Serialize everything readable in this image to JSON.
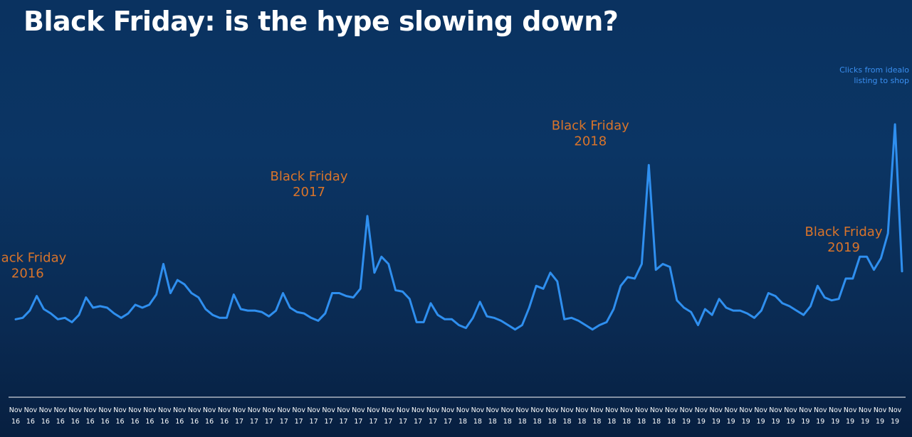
{
  "title": "Black Friday: is the hype slowing down?",
  "colors": {
    "line": "#2f8fef",
    "annotation": "#d9742a",
    "series_label": "#3a8ff0",
    "axis": "#ffffff"
  },
  "chart_data": {
    "type": "line",
    "title": "Black Friday: is the hype slowing down?",
    "series_label_lines": [
      "Clicks from idealo",
      "listing to shop"
    ],
    "x_tick_lines": [
      [
        "Nov",
        "16"
      ],
      [
        "Nov",
        "16"
      ],
      [
        "Nov",
        "16"
      ],
      [
        "Nov",
        "16"
      ],
      [
        "Nov",
        "16"
      ],
      [
        "Nov",
        "16"
      ],
      [
        "Nov",
        "16"
      ],
      [
        "Nov",
        "16"
      ],
      [
        "Nov",
        "16"
      ],
      [
        "Nov",
        "16"
      ],
      [
        "Nov",
        "16"
      ],
      [
        "Nov",
        "16"
      ],
      [
        "Nov",
        "16"
      ],
      [
        "Nov",
        "16"
      ],
      [
        "Nov",
        "16"
      ],
      [
        "Nov",
        "17"
      ],
      [
        "Nov",
        "17"
      ],
      [
        "Nov",
        "17"
      ],
      [
        "Nov",
        "17"
      ],
      [
        "Nov",
        "17"
      ],
      [
        "Nov",
        "17"
      ],
      [
        "Nov",
        "17"
      ],
      [
        "Nov",
        "17"
      ],
      [
        "Nov",
        "17"
      ],
      [
        "Nov",
        "17"
      ],
      [
        "Nov",
        "17"
      ],
      [
        "Nov",
        "17"
      ],
      [
        "Nov",
        "17"
      ],
      [
        "Nov",
        "17"
      ],
      [
        "Nov",
        "17"
      ],
      [
        "Nov",
        "18"
      ],
      [
        "Nov",
        "18"
      ],
      [
        "Nov",
        "18"
      ],
      [
        "Nov",
        "18"
      ],
      [
        "Nov",
        "18"
      ],
      [
        "Nov",
        "18"
      ],
      [
        "Nov",
        "18"
      ],
      [
        "Nov",
        "18"
      ],
      [
        "Nov",
        "18"
      ],
      [
        "Nov",
        "18"
      ],
      [
        "Nov",
        "18"
      ],
      [
        "Nov",
        "18"
      ],
      [
        "Nov",
        "18"
      ],
      [
        "Nov",
        "18"
      ],
      [
        "Nov",
        "18"
      ],
      [
        "Nov",
        "19"
      ],
      [
        "Nov",
        "19"
      ],
      [
        "Nov",
        "19"
      ],
      [
        "Nov",
        "19"
      ],
      [
        "Nov",
        "19"
      ],
      [
        "Nov",
        "19"
      ],
      [
        "Nov",
        "19"
      ],
      [
        "Nov",
        "19"
      ],
      [
        "Nov",
        "19"
      ],
      [
        "Nov",
        "19"
      ],
      [
        "Nov",
        "19"
      ],
      [
        "Nov",
        "19"
      ],
      [
        "Nov",
        "19"
      ],
      [
        "Nov",
        "19"
      ],
      [
        "Nov",
        "19"
      ]
    ],
    "values": [
      14,
      15,
      20,
      30,
      21,
      18,
      14,
      15,
      12,
      17,
      29,
      22,
      23,
      22,
      18,
      15,
      18,
      24,
      22,
      24,
      31,
      52,
      32,
      41,
      38,
      32,
      29,
      21,
      17,
      15,
      15,
      31,
      21,
      20,
      20,
      19,
      16,
      20,
      32,
      22,
      19,
      18,
      15,
      13,
      18,
      32,
      32,
      30,
      29,
      35,
      85,
      46,
      57,
      52,
      34,
      33,
      28,
      12,
      12,
      25,
      17,
      14,
      14,
      10,
      8,
      15,
      26,
      16,
      15,
      13,
      10,
      7,
      10,
      22,
      37,
      35,
      46,
      40,
      14,
      15,
      13,
      10,
      7,
      10,
      12,
      21,
      37,
      43,
      42,
      52,
      120,
      48,
      52,
      50,
      27,
      22,
      19,
      10,
      21,
      17,
      28,
      22,
      20,
      20,
      18,
      15,
      20,
      32,
      30,
      25,
      23,
      20,
      17,
      23,
      37,
      29,
      27,
      28,
      42,
      42,
      57,
      57,
      48,
      56,
      73,
      148,
      47
    ],
    "ylim": [
      0,
      155
    ],
    "annotations": [
      {
        "lines": [
          "Black Friday",
          "2016"
        ],
        "index": 10
      },
      {
        "lines": [
          "Black Friday",
          "2017"
        ],
        "index": 50
      },
      {
        "lines": [
          "Black Friday",
          "2018"
        ],
        "index": 90
      },
      {
        "lines": [
          "Black Friday",
          "2019"
        ],
        "index": 126
      }
    ],
    "grid": false,
    "legend": "none"
  }
}
